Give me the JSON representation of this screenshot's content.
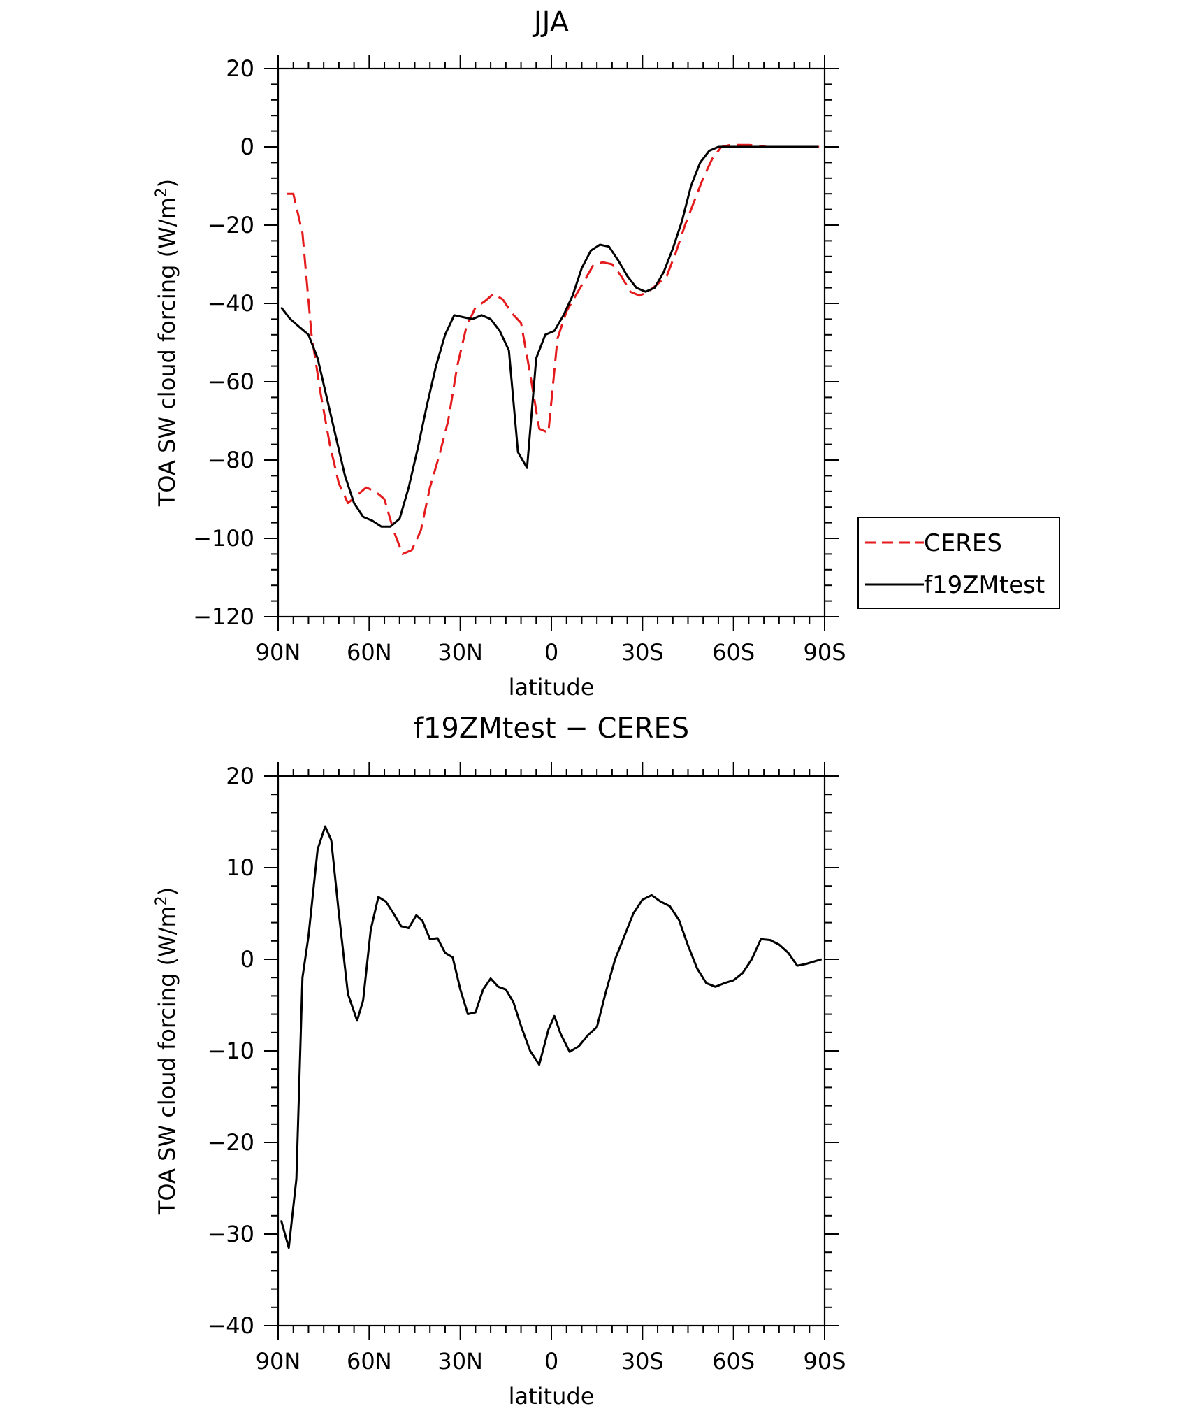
{
  "chart_data": [
    {
      "type": "line",
      "title": "JJA",
      "xlabel": "latitude",
      "ylabel": "TOA SW cloud forcing (W/m",
      "ylabel_sup": "2",
      "ylabel_close": ")",
      "xlim": [
        90,
        -90
      ],
      "ylim": [
        -120,
        20
      ],
      "x_ticks": [
        {
          "value": 90,
          "label": "90N"
        },
        {
          "value": 60,
          "label": "60N"
        },
        {
          "value": 30,
          "label": "30N"
        },
        {
          "value": 0,
          "label": "0"
        },
        {
          "value": -30,
          "label": "30S"
        },
        {
          "value": -60,
          "label": "60S"
        },
        {
          "value": -90,
          "label": "90S"
        }
      ],
      "y_ticks": [
        20,
        0,
        -20,
        -40,
        -60,
        -80,
        -100,
        -120
      ],
      "y_tick_labels": [
        "20",
        "0",
        "−20",
        "−40",
        "−60",
        "−80",
        "−100",
        "−120"
      ],
      "grid": false,
      "legend_position": "right",
      "series": [
        {
          "name": "CERES",
          "color": "#e41a1c",
          "dash": "dashed",
          "x": [
            87,
            85,
            82,
            79,
            76,
            73,
            70,
            67,
            64,
            61,
            58,
            55,
            52,
            49,
            46,
            43,
            40,
            37,
            34,
            31,
            28,
            25,
            22,
            19,
            16,
            13,
            10,
            7,
            4,
            1,
            -2,
            -5,
            -8,
            -11,
            -14,
            -17,
            -20,
            -23,
            -26,
            -29,
            -32,
            -35,
            -38,
            -41,
            -44,
            -47,
            -50,
            -53,
            -56,
            -59,
            -62,
            -65,
            -68,
            -71,
            -74,
            -77,
            -80,
            -83,
            -86,
            -89
          ],
          "y": [
            -12,
            -12,
            -22,
            -48,
            -63,
            -76,
            -86,
            -91,
            -89,
            -87,
            -88,
            -90,
            -98,
            -104,
            -103,
            -98,
            -87,
            -79,
            -70,
            -56,
            -46,
            -41,
            -39.5,
            -37.5,
            -39,
            -42.5,
            -45,
            -58,
            -72,
            -73,
            -49,
            -42,
            -38,
            -34,
            -30,
            -29.5,
            -30,
            -33,
            -37,
            -38,
            -37,
            -35,
            -33,
            -27,
            -20,
            -14,
            -8,
            -3,
            0,
            0.5,
            0.5,
            0.5,
            0.3,
            0,
            0,
            0,
            0,
            0,
            0,
            0
          ]
        },
        {
          "name": "f19ZMtest",
          "color": "#000000",
          "dash": "solid",
          "x": [
            89,
            86,
            83,
            80,
            77,
            74,
            71,
            68,
            65,
            62,
            59,
            56,
            53,
            50,
            47,
            44,
            41,
            38,
            35,
            32,
            29,
            26,
            23,
            20,
            17,
            14,
            11,
            8,
            5,
            2,
            -1,
            -4,
            -7,
            -10,
            -13,
            -16,
            -19,
            -22,
            -25,
            -28,
            -31,
            -34,
            -37,
            -40,
            -43,
            -46,
            -49,
            -52,
            -55,
            -58,
            -61,
            -64,
            -67,
            -70,
            -73,
            -76,
            -79,
            -82,
            -85,
            -88
          ],
          "y": [
            -41,
            -44,
            -46,
            -48,
            -54,
            -64,
            -74,
            -84,
            -91,
            -94.5,
            -95.5,
            -97,
            -97,
            -95,
            -87,
            -77,
            -66,
            -56,
            -48,
            -43,
            -43.5,
            -44,
            -43,
            -44,
            -47,
            -52,
            -78,
            -82,
            -54,
            -48,
            -47,
            -43,
            -38,
            -31,
            -26.5,
            -25,
            -25.5,
            -29,
            -33,
            -36,
            -37,
            -36,
            -32,
            -26,
            -19,
            -10,
            -4,
            -1,
            0,
            0,
            0,
            0,
            0,
            0,
            0,
            0,
            0,
            0,
            0,
            0
          ]
        }
      ]
    },
    {
      "type": "line",
      "title": "f19ZMtest − CERES",
      "xlabel": "latitude",
      "ylabel": "TOA SW cloud forcing (W/m",
      "ylabel_sup": "2",
      "ylabel_close": ")",
      "xlim": [
        90,
        -90
      ],
      "ylim": [
        -40,
        20
      ],
      "x_ticks": [
        {
          "value": 90,
          "label": "90N"
        },
        {
          "value": 60,
          "label": "60N"
        },
        {
          "value": 30,
          "label": "30N"
        },
        {
          "value": 0,
          "label": "0"
        },
        {
          "value": -30,
          "label": "30S"
        },
        {
          "value": -60,
          "label": "60S"
        },
        {
          "value": -90,
          "label": "90S"
        }
      ],
      "y_ticks": [
        20,
        10,
        0,
        -10,
        -20,
        -30,
        -40
      ],
      "y_tick_labels": [
        "20",
        "10",
        "0",
        "−10",
        "−20",
        "−30",
        "−40"
      ],
      "grid": false,
      "series": [
        {
          "color": "#000000",
          "dash": "solid",
          "x": [
            89,
            86.5,
            84,
            82,
            80,
            77,
            74.5,
            72.5,
            70,
            67,
            64,
            62,
            59.5,
            57,
            54.5,
            52,
            49.5,
            47,
            44.5,
            42.5,
            40,
            37.5,
            35,
            32.5,
            30,
            27.5,
            25,
            22.5,
            20,
            17.5,
            15,
            12.5,
            10,
            7,
            4,
            1,
            -1,
            -3,
            -6,
            -9,
            -12,
            -15,
            -18,
            -21,
            -24,
            -27,
            -30,
            -33,
            -36,
            -39,
            -42,
            -45,
            -48,
            -51,
            -54,
            -57,
            -60,
            -63,
            -66,
            -69,
            -72,
            -75,
            -78,
            -81,
            -84,
            -87,
            -89
          ],
          "y": [
            -28.5,
            -31.5,
            -24,
            -2,
            2.5,
            12,
            14.5,
            13,
            5,
            -3.8,
            -6.7,
            -4.5,
            3.2,
            6.8,
            6.3,
            5,
            3.6,
            3.4,
            4.8,
            4.2,
            2.2,
            2.3,
            0.7,
            0.2,
            -3.3,
            -6,
            -5.8,
            -3.3,
            -2.1,
            -3,
            -3.3,
            -4.7,
            -7.3,
            -10,
            -11.5,
            -7.7,
            -6.2,
            -8.1,
            -10.1,
            -9.5,
            -8.3,
            -7.4,
            -3.5,
            0,
            2.5,
            5,
            6.5,
            7,
            6.3,
            5.8,
            4.3,
            1.5,
            -1,
            -2.6,
            -3,
            -2.6,
            -2.3,
            -1.5,
            0,
            2.2,
            2.1,
            1.6,
            0.7,
            -0.7,
            -0.5,
            -0.2,
            0
          ]
        }
      ]
    }
  ]
}
